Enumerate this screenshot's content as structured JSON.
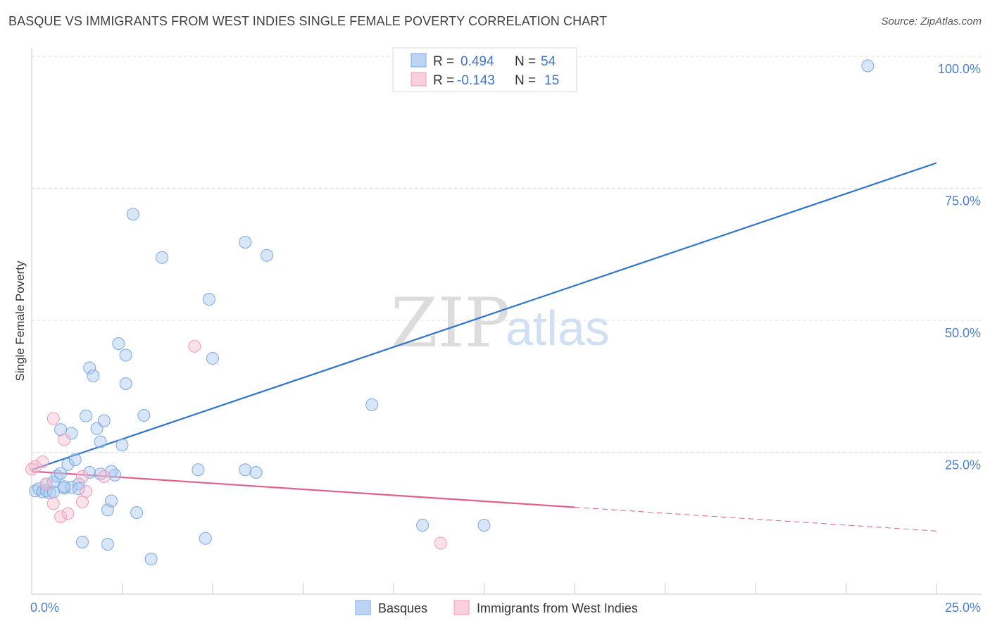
{
  "title": "BASQUE VS IMMIGRANTS FROM WEST INDIES SINGLE FEMALE POVERTY CORRELATION CHART",
  "source": "Source: ZipAtlas.com",
  "watermark": {
    "zip": "ZIP",
    "atlas": "atlas"
  },
  "legend": {
    "rows": [
      {
        "r_label": "R =",
        "r_value": "0.494",
        "n_label": "N =",
        "n_value": "54",
        "color": "#a9c8f0"
      },
      {
        "r_label": "R =",
        "r_value": "-0.143",
        "n_label": "N =",
        "n_value": "15",
        "color": "#f7bcd0"
      }
    ]
  },
  "bottom_legend": [
    {
      "label": "Basques",
      "color": "#a9c8f0"
    },
    {
      "label": "Immigrants from West Indies",
      "color": "#f7bcd0"
    }
  ],
  "chart_data": {
    "type": "scatter",
    "title": "BASQUE VS IMMIGRANTS FROM WEST INDIES SINGLE FEMALE POVERTY CORRELATION CHART",
    "ylabel": "Single Female Poverty",
    "xlabel": "",
    "xlim": [
      0,
      25
    ],
    "ylim": [
      0,
      100
    ],
    "x_tick_labels": [
      "0.0%",
      "25.0%"
    ],
    "y_tick_labels": [
      "100.0%",
      "75.0%",
      "50.0%",
      "25.0%"
    ],
    "y_ticks": [
      100,
      75,
      50,
      25
    ],
    "grid": true,
    "legend_position": "top-center",
    "series": [
      {
        "name": "Basques",
        "color": "#7aa9e6",
        "trend_color": "#2f74d0",
        "trend": {
          "x": [
            0,
            25
          ],
          "y": [
            21.7,
            79.8
          ]
        },
        "points": [
          [
            0.1,
            17.7
          ],
          [
            0.2,
            18.1
          ],
          [
            0.3,
            17.5
          ],
          [
            0.4,
            19.0
          ],
          [
            0.4,
            17.7
          ],
          [
            0.5,
            17.3
          ],
          [
            0.6,
            19.4
          ],
          [
            0.7,
            20.5
          ],
          [
            0.8,
            29.3
          ],
          [
            0.9,
            18.2
          ],
          [
            1.0,
            22.7
          ],
          [
            1.1,
            18.4
          ],
          [
            1.1,
            28.6
          ],
          [
            1.2,
            23.6
          ],
          [
            1.3,
            19.0
          ],
          [
            1.3,
            18.1
          ],
          [
            1.4,
            8.0
          ],
          [
            1.5,
            31.9
          ],
          [
            1.6,
            41.0
          ],
          [
            1.6,
            21.2
          ],
          [
            1.7,
            39.5
          ],
          [
            1.8,
            29.5
          ],
          [
            1.9,
            27.0
          ],
          [
            2.0,
            31.0
          ],
          [
            2.1,
            14.1
          ],
          [
            2.1,
            7.6
          ],
          [
            2.2,
            15.8
          ],
          [
            2.3,
            20.7
          ],
          [
            2.4,
            45.6
          ],
          [
            2.5,
            26.4
          ],
          [
            2.6,
            43.4
          ],
          [
            2.6,
            38.0
          ],
          [
            2.8,
            70.1
          ],
          [
            2.9,
            13.6
          ],
          [
            3.1,
            32.0
          ],
          [
            3.3,
            4.8
          ],
          [
            3.6,
            61.9
          ],
          [
            4.6,
            21.7
          ],
          [
            4.8,
            8.7
          ],
          [
            4.9,
            54.0
          ],
          [
            5.0,
            42.8
          ],
          [
            5.9,
            21.7
          ],
          [
            5.9,
            64.8
          ],
          [
            6.2,
            21.2
          ],
          [
            6.5,
            62.3
          ],
          [
            9.4,
            34.0
          ],
          [
            10.8,
            11.2
          ],
          [
            12.5,
            11.2
          ],
          [
            23.1,
            98.2
          ],
          [
            0.8,
            21.0
          ],
          [
            1.9,
            20.9
          ],
          [
            0.6,
            17.5
          ],
          [
            2.2,
            21.4
          ],
          [
            0.9,
            18.5
          ]
        ]
      },
      {
        "name": "Immigrants from West Indies",
        "color": "#f29ab8",
        "trend_color": "#e0608d",
        "trend": {
          "x": [
            0,
            15
          ],
          "y": [
            21.4,
            14.6
          ]
        },
        "trend_dashed": {
          "x": [
            15,
            25
          ],
          "y": [
            14.6,
            10.1
          ]
        },
        "points": [
          [
            0.0,
            21.8
          ],
          [
            0.1,
            22.3
          ],
          [
            0.3,
            23.2
          ],
          [
            0.4,
            19.0
          ],
          [
            0.6,
            15.3
          ],
          [
            0.6,
            31.4
          ],
          [
            0.8,
            12.8
          ],
          [
            0.9,
            27.4
          ],
          [
            1.0,
            13.4
          ],
          [
            1.4,
            15.6
          ],
          [
            1.4,
            20.4
          ],
          [
            1.5,
            17.6
          ],
          [
            2.0,
            20.4
          ],
          [
            4.5,
            45.1
          ],
          [
            11.3,
            7.8
          ]
        ]
      }
    ]
  }
}
